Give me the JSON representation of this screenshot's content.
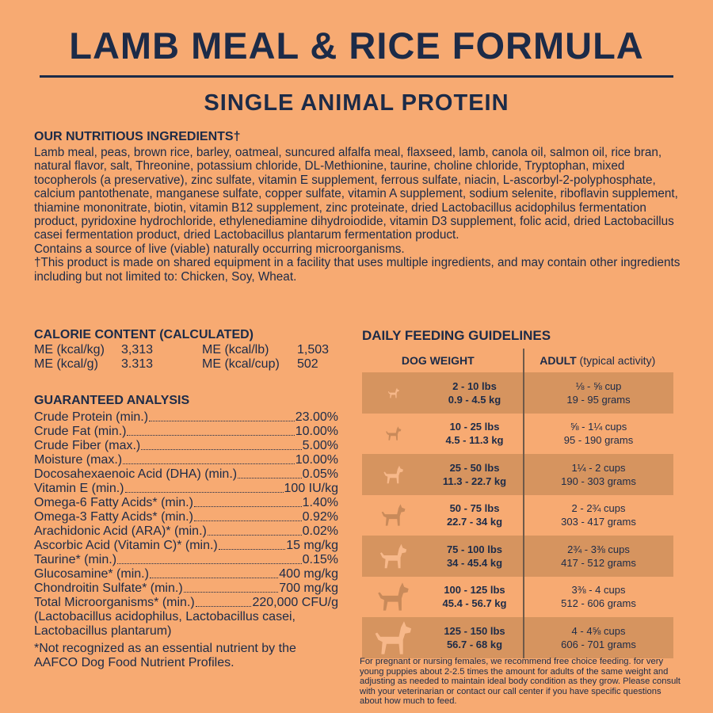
{
  "title": "LAMB MEAL & RICE FORMULA",
  "subtitle": "SINGLE ANIMAL PROTEIN",
  "ingredients": {
    "heading": "OUR NUTRITIOUS INGREDIENTS†",
    "text": "Lamb meal, peas, brown rice, barley, oatmeal, suncured alfalfa meal, flaxseed, lamb, canola oil, salmon oil, rice bran, natural flavor, salt, Threonine, potassium chloride, DL-Methionine, taurine, choline chloride, Tryptophan, mixed tocopherols (a preservative), zinc sulfate, vitamin E supplement, ferrous sulfate, niacin, L-ascorbyl-2-polyphosphate, calcium pantothenate, manganese sulfate, copper sulfate, vitamin A supplement, sodium selenite, riboflavin supplement, thiamine mononitrate, biotin, vitamin B12 supplement, zinc proteinate, dried Lactobacillus acidophilus fermentation product, pyridoxine hydrochloride, ethylenediamine dihydroiodide, vitamin D3 supplement, folic acid, dried Lactobacillus casei fermentation product, dried Lactobacillus plantarum fermentation product.",
    "live": "Contains a source of live (viable) naturally occurring microorganisms.",
    "allergen": "†This product is made on shared equipment in a facility that uses multiple ingredients, and may contain other ingredients including but not limited to: Chicken, Soy, Wheat."
  },
  "calorie": {
    "heading": "CALORIE CONTENT (CALCULATED)",
    "items": [
      {
        "label": "ME (kcal/kg)",
        "value": "3,313"
      },
      {
        "label": "ME (kcal/lb)",
        "value": "1,503"
      },
      {
        "label": "ME (kcal/g)",
        "value": "3.313"
      },
      {
        "label": "ME (kcal/cup)",
        "value": "502"
      }
    ]
  },
  "analysis": {
    "heading": "GUARANTEED ANALYSIS",
    "rows": [
      {
        "label": "Crude Protein (min.)",
        "value": "23.00%"
      },
      {
        "label": "Crude Fat (min.)",
        "value": "10.00%"
      },
      {
        "label": "Crude Fiber (max.)",
        "value": "5.00%"
      },
      {
        "label": "Moisture (max.)",
        "value": "10.00%"
      },
      {
        "label": "Docosahexaenoic Acid (DHA) (min.)",
        "value": "0.05%"
      },
      {
        "label": "Vitamin E (min.)",
        "value": "100 IU/kg"
      },
      {
        "label": "Omega-6 Fatty Acids* (min.)",
        "value": "1.40%"
      },
      {
        "label": "Omega-3 Fatty Acids* (min.)",
        "value": "0.92%"
      },
      {
        "label": "Arachidonic Acid (ARA)* (min.)",
        "value": "0.02%"
      },
      {
        "label": "Ascorbic Acid (Vitamin C)* (min.)",
        "value": "15 mg/kg"
      },
      {
        "label": "Taurine* (min.)",
        "value": "0.15%"
      },
      {
        "label": "Glucosamine* (min.)",
        "value": "400 mg/kg"
      },
      {
        "label": "Chondroitin Sulfate* (min.)",
        "value": "700 mg/kg"
      },
      {
        "label": "Total Microorganisms* (min.)",
        "value": "220,000 CFU/g"
      }
    ],
    "micro_note": "(Lactobacillus acidophilus, Lactobacillus casei, Lactobacillus plantarum)",
    "footnote": "*Not recognized as an essential nutrient by the AAFCO Dog Food Nutrient Profiles."
  },
  "feeding": {
    "heading": "DAILY FEEDING GUIDELINES",
    "col_weight": "DOG WEIGHT",
    "col_adult": "ADULT",
    "col_adult_sub": "(typical activity)",
    "rows": [
      {
        "lbs": "2 - 10 lbs",
        "kg": "0.9 - 4.5 kg",
        "cups": "⅛ - ⅝ cup",
        "grams": "19 - 95 grams",
        "icon": "tiny-dog-icon"
      },
      {
        "lbs": "10 - 25 lbs",
        "kg": "4.5 - 11.3 kg",
        "cups": "⅝ - 1¼ cups",
        "grams": "95 - 190 grams",
        "icon": "small-dog-icon"
      },
      {
        "lbs": "25 - 50 lbs",
        "kg": "11.3 - 22.7 kg",
        "cups": "1¼ - 2 cups",
        "grams": "190 - 303 grams",
        "icon": "medium-dog-icon"
      },
      {
        "lbs": "50 - 75 lbs",
        "kg": "22.7 - 34 kg",
        "cups": "2 - 2¾ cups",
        "grams": "303 - 417 grams",
        "icon": "large-dog-icon"
      },
      {
        "lbs": "75 - 100 lbs",
        "kg": "34 - 45.4 kg",
        "cups": "2¾ - 3⅜ cups",
        "grams": "417 - 512 grams",
        "icon": "great-dane-icon"
      },
      {
        "lbs": "100 - 125 lbs",
        "kg": "45.4 - 56.7 kg",
        "cups": "3⅜ - 4 cups",
        "grams": "512 - 606 grams",
        "icon": "xl-dog-icon"
      },
      {
        "lbs": "125 - 150 lbs",
        "kg": "56.7 - 68 kg",
        "cups": "4 - 4⅝ cups",
        "grams": "606 - 701 grams",
        "icon": "giant-dog-icon"
      }
    ],
    "note": "For pregnant or nursing females, we recommend free choice feeding. for very young puppies about 2-2.5 times the amount for adults of the same weight and adjusting as needed to maintain ideal body condition as they grow. Please consult with your veterinarian or contact our call center if you have specific questions about how much to feed."
  },
  "colors": {
    "background": "#f7aa72",
    "text": "#1c2b48",
    "row_shade": "#d6945f",
    "icon_dark": "#c98a5a",
    "icon_light": "#f7b88a"
  }
}
